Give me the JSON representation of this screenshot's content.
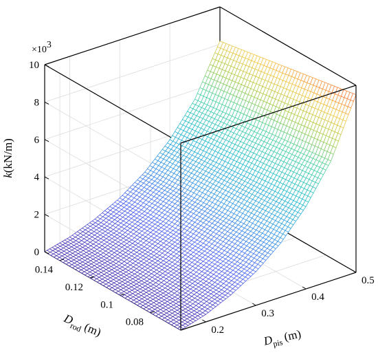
{
  "chart_data": {
    "type": "surface",
    "xlabel": {
      "var": "D",
      "sub": "pis",
      "unit": "(m)"
    },
    "ylabel": {
      "var": "D",
      "sub": "rod",
      "unit": "(m)"
    },
    "zlabel": {
      "var": "k",
      "unit": "(kN/m)"
    },
    "z_multiplier": "×10",
    "z_multiplier_exp": "3",
    "x_range": [
      0.15,
      0.5
    ],
    "y_range": [
      0.06,
      0.15
    ],
    "z_range": [
      0,
      10
    ],
    "x_ticks": [
      "0.2",
      "0.3",
      "0.4",
      "0.5"
    ],
    "x_tick_values": [
      0.2,
      0.3,
      0.4,
      0.5
    ],
    "y_ticks": [
      "0.08",
      "0.1",
      "0.12",
      "0.14"
    ],
    "y_tick_values": [
      0.08,
      0.1,
      0.12,
      0.14
    ],
    "z_ticks": [
      "0",
      "2",
      "4",
      "6",
      "8",
      "10"
    ],
    "z_tick_values": [
      0,
      2,
      4,
      6,
      8,
      10
    ],
    "surface_samples": [
      {
        "x": 0.15,
        "z": 0.0
      },
      {
        "x": 0.2,
        "z": 0.4
      },
      {
        "x": 0.25,
        "z": 1.0
      },
      {
        "x": 0.3,
        "z": 1.8
      },
      {
        "x": 0.35,
        "z": 2.9
      },
      {
        "x": 0.4,
        "z": 4.4
      },
      {
        "x": 0.45,
        "z": 6.4
      },
      {
        "x": 0.5,
        "z": 9.5
      }
    ],
    "grid": true,
    "colormap": "parula"
  }
}
